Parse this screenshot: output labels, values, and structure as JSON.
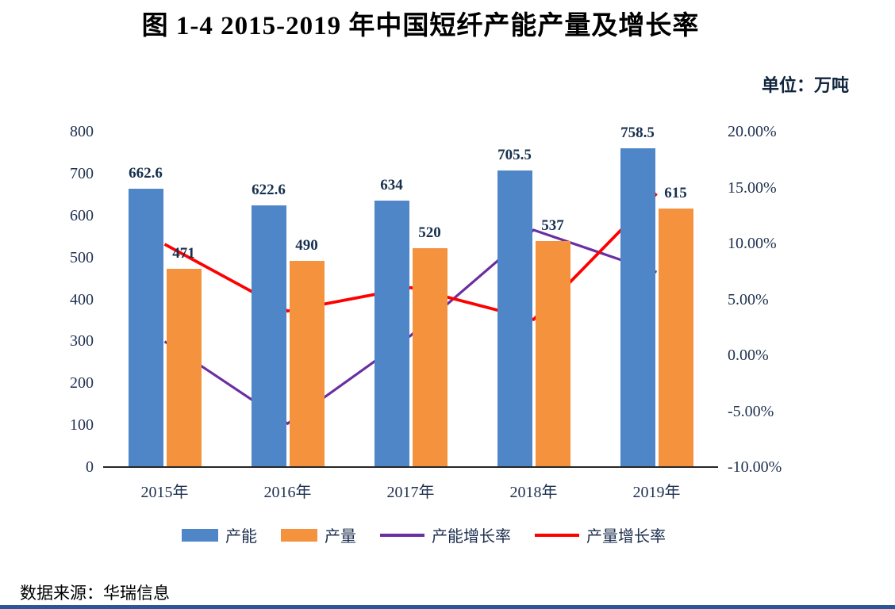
{
  "title": "图 1-4 2015-2019 年中国短纤产能产量及增长率",
  "unit_label": "单位：万吨",
  "source_note": "数据来源：华瑞信息",
  "colors": {
    "capacity_bar": "#4e86c8",
    "production_bar": "#f5923d",
    "capacity_growth_line": "#6a2fa0",
    "production_growth_line": "#fe0000",
    "axis_text": "#1f3050",
    "footer_strip": "#2e5597"
  },
  "chart_data": {
    "type": "bar",
    "subtype": "combo bar+line, dual axis",
    "title": "图 1-4 2015-2019 年中国短纤产能产量及增长率",
    "categories": [
      "2015年",
      "2016年",
      "2017年",
      "2018年",
      "2019年"
    ],
    "series": [
      {
        "name": "产能",
        "type": "bar",
        "axis": "left",
        "color": "#4e86c8",
        "values": [
          662.6,
          622.6,
          634,
          705.5,
          758.5
        ],
        "labels": [
          "662.6",
          "622.6",
          "634",
          "705.5",
          "758.5"
        ]
      },
      {
        "name": "产量",
        "type": "bar",
        "axis": "left",
        "color": "#f5923d",
        "values": [
          471,
          490,
          520,
          537,
          615
        ],
        "labels": [
          "471",
          "490",
          "520",
          "537",
          "615"
        ]
      },
      {
        "name": "产能增长率",
        "type": "line",
        "axis": "right",
        "color": "#6a2fa0",
        "values": [
          1.3,
          -6.04,
          1.83,
          11.28,
          7.51
        ]
      },
      {
        "name": "产量增长率",
        "type": "line",
        "axis": "right",
        "color": "#fe0000",
        "values": [
          10.0,
          4.03,
          6.12,
          3.27,
          14.53
        ]
      }
    ],
    "left_axis": {
      "min": 0,
      "max": 800,
      "ticks": [
        "800",
        "700",
        "600",
        "500",
        "400",
        "300",
        "200",
        "100",
        "0"
      ]
    },
    "right_axis": {
      "min": -10,
      "max": 20,
      "ticks": [
        "20.00%",
        "15.00%",
        "10.00%",
        "5.00%",
        "0.00%",
        "-5.00%",
        "-10.00%"
      ]
    },
    "grid": false,
    "legend_position": "bottom",
    "legend": [
      "产能",
      "产量",
      "产能增长率",
      "产量增长率"
    ]
  }
}
